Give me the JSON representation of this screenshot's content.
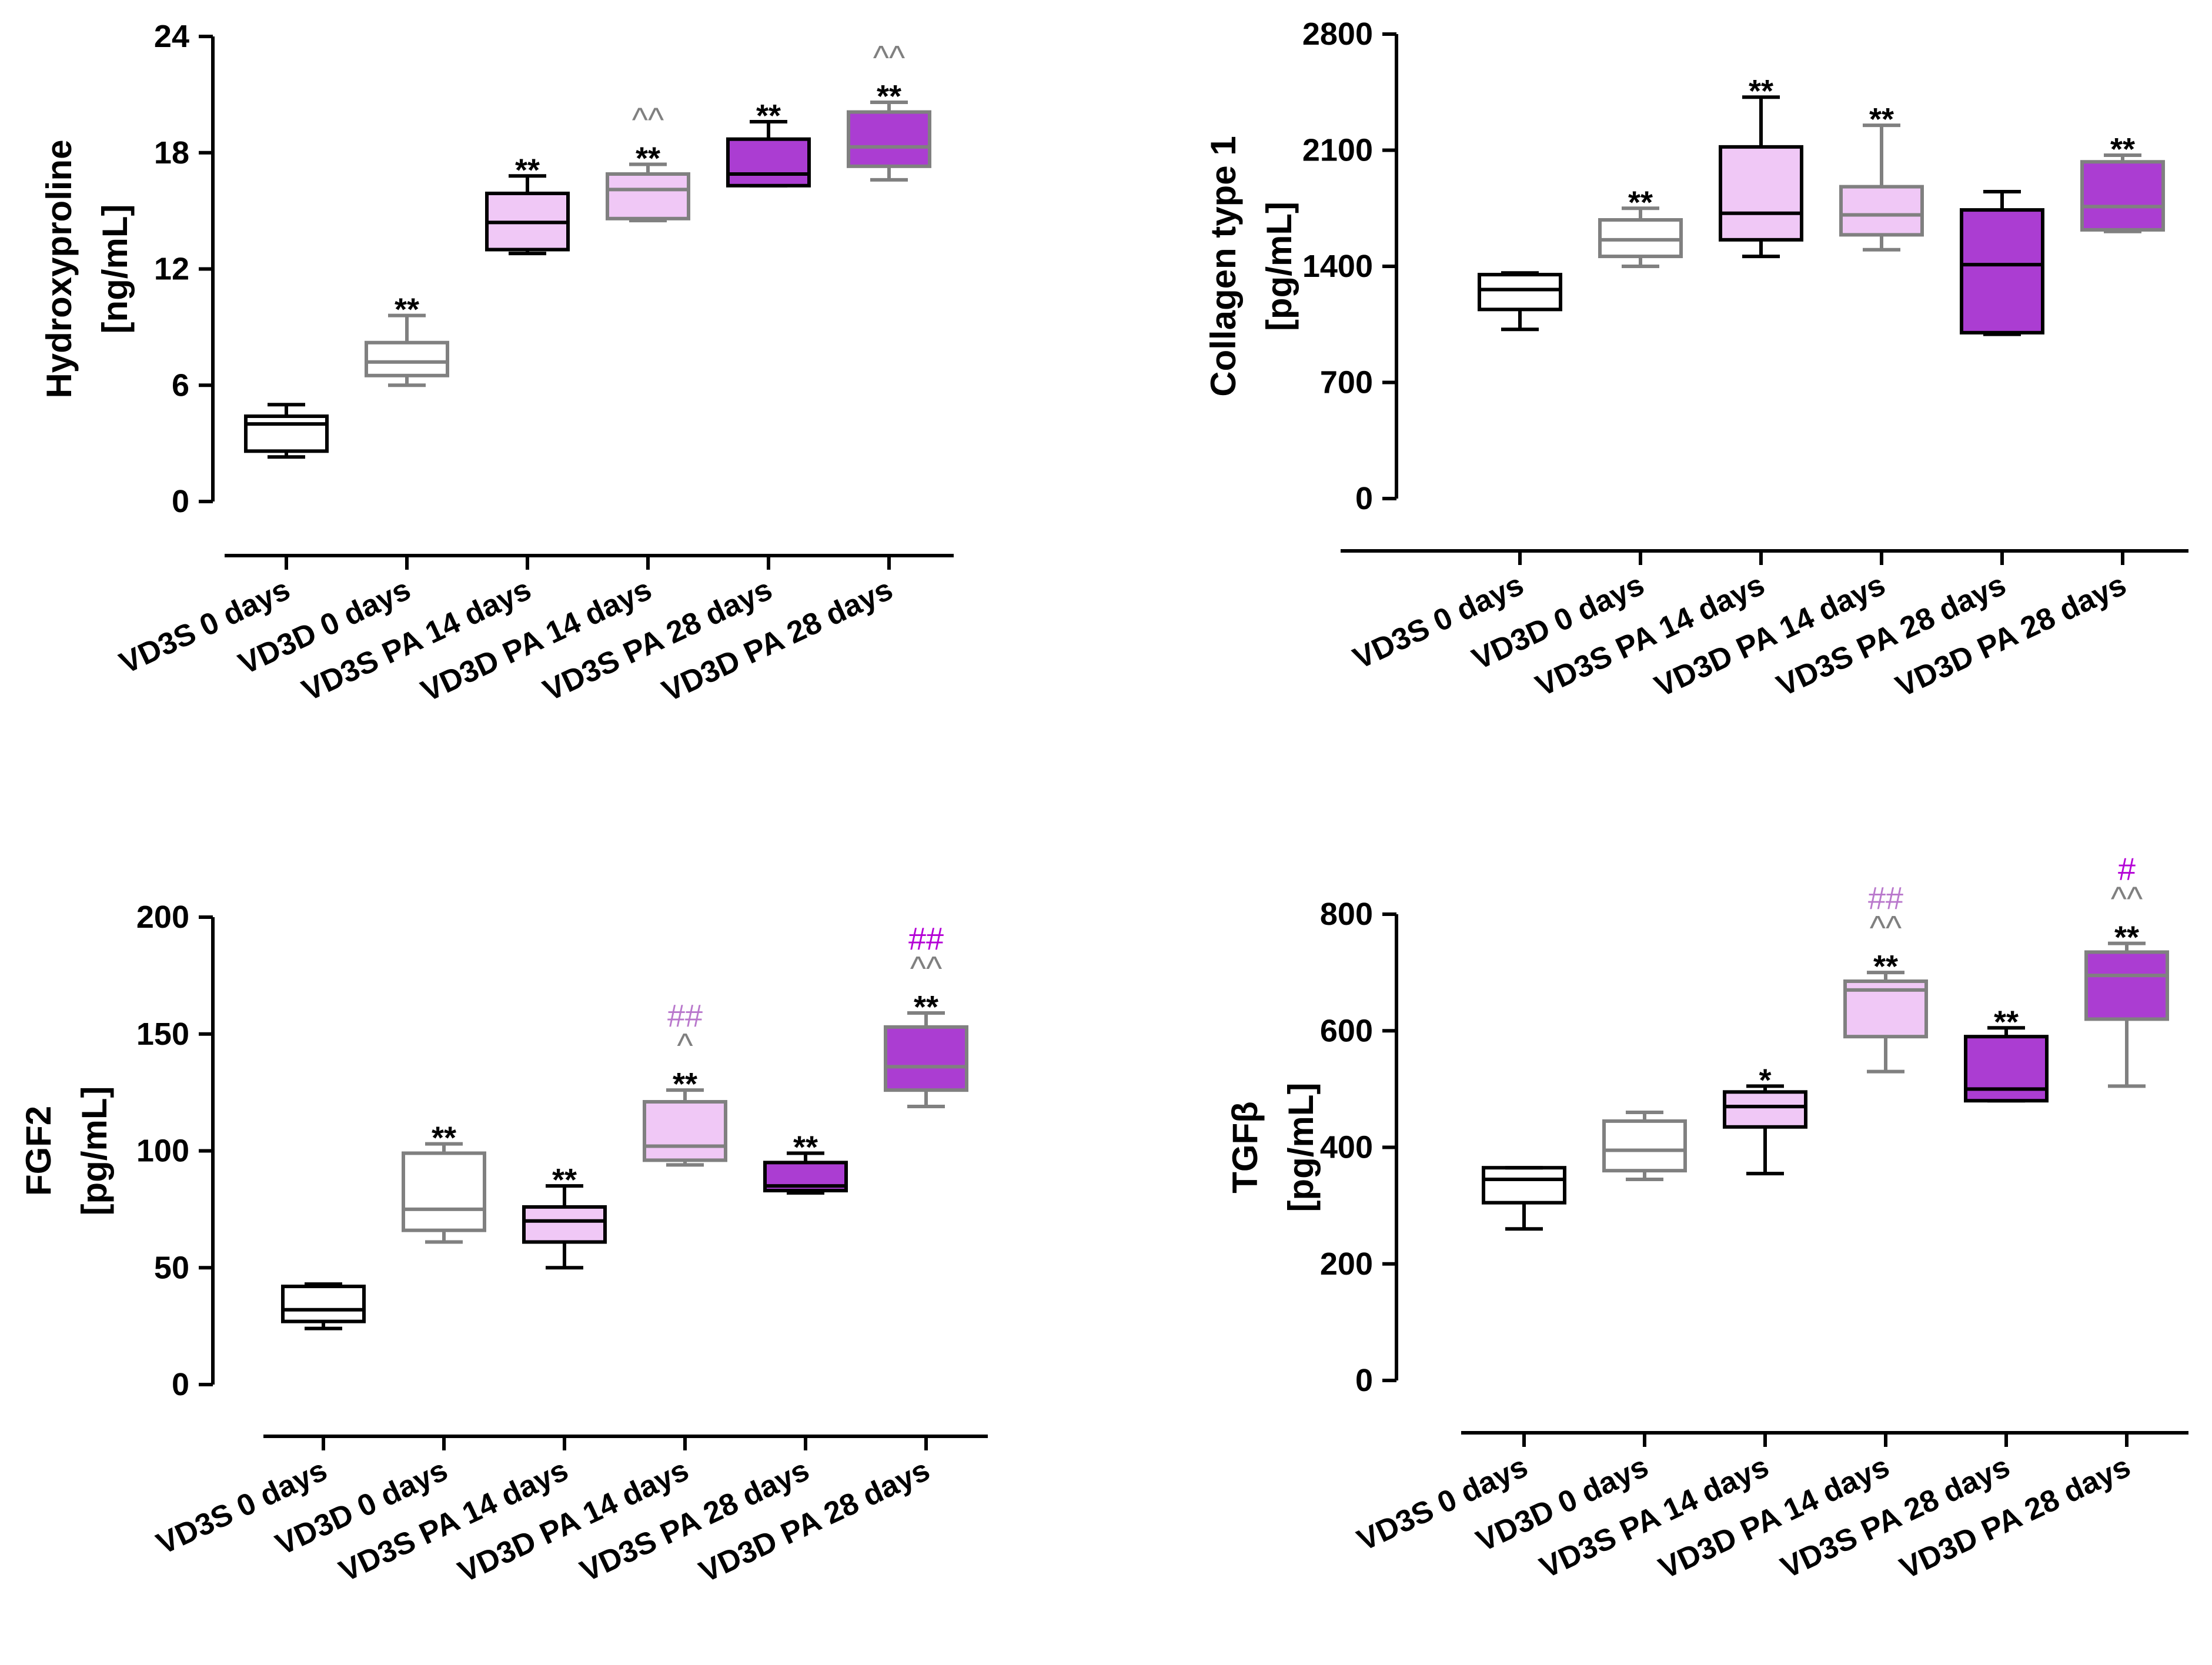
{
  "figure": {
    "colors": {
      "black": "#000000",
      "gray": "#808080",
      "light_fill": "#f0c8f6",
      "dark_fill": "#ab3dd2",
      "hash_light": "#b978cc",
      "hash_dark": "#b400d6"
    }
  },
  "chart_data": [
    {
      "type": "box",
      "title": "",
      "ylabel": "Hydroxyproline",
      "yunit": "[ng/mL]",
      "ylim": [
        0,
        24
      ],
      "yticks": [
        "0",
        "6",
        "12",
        "18",
        "24"
      ],
      "categories": [
        "VD3S 0 days",
        "VD3D 0 days",
        "VD3S PA 14 days",
        "VD3D PA 14 days",
        "VD3S PA 28 days",
        "VD3D PA 28 days"
      ],
      "boxes": [
        {
          "min": 2.3,
          "q1": 2.6,
          "median": 4.0,
          "q3": 4.4,
          "max": 5.0
        },
        {
          "min": 6.0,
          "q1": 6.5,
          "median": 7.2,
          "q3": 8.2,
          "max": 9.6
        },
        {
          "min": 12.8,
          "q1": 13.0,
          "median": 14.4,
          "q3": 15.9,
          "max": 16.8
        },
        {
          "min": 14.5,
          "q1": 14.6,
          "median": 16.1,
          "q3": 16.9,
          "max": 17.4
        },
        {
          "min": 16.3,
          "q1": 16.3,
          "median": 16.9,
          "q3": 18.7,
          "max": 19.6
        },
        {
          "min": 16.6,
          "q1": 17.3,
          "median": 18.3,
          "q3": 20.1,
          "max": 20.6
        }
      ],
      "annotations": [
        [],
        [
          {
            "text": "**",
            "style": "black"
          }
        ],
        [
          {
            "text": "**",
            "style": "black"
          }
        ],
        [
          {
            "text": "**",
            "style": "black"
          },
          {
            "text": "^^",
            "style": "gray"
          }
        ],
        [
          {
            "text": "**",
            "style": "black"
          }
        ],
        [
          {
            "text": "**",
            "style": "black"
          },
          {
            "text": "^^",
            "style": "gray"
          }
        ]
      ]
    },
    {
      "type": "box",
      "title": "",
      "ylabel": "Collagen type 1",
      "yunit": "[pg/mL]",
      "ylim": [
        0,
        2800
      ],
      "yticks": [
        "0",
        "700",
        "1400",
        "2100",
        "2800"
      ],
      "categories": [
        "VD3S 0 days",
        "VD3D 0 days",
        "VD3S PA 14 days",
        "VD3D PA 14 days",
        "VD3S PA 28 days",
        "VD3D PA 28 days"
      ],
      "boxes": [
        {
          "min": 1020,
          "q1": 1140,
          "median": 1260,
          "q3": 1350,
          "max": 1360
        },
        {
          "min": 1400,
          "q1": 1460,
          "median": 1560,
          "q3": 1680,
          "max": 1750
        },
        {
          "min": 1460,
          "q1": 1560,
          "median": 1720,
          "q3": 2120,
          "max": 2420
        },
        {
          "min": 1500,
          "q1": 1590,
          "median": 1710,
          "q3": 1880,
          "max": 2250
        },
        {
          "min": 990,
          "q1": 1000,
          "median": 1410,
          "q3": 1740,
          "max": 1850
        },
        {
          "min": 1610,
          "q1": 1620,
          "median": 1760,
          "q3": 2030,
          "max": 2070
        }
      ],
      "annotations": [
        [],
        [
          {
            "text": "**",
            "style": "black"
          }
        ],
        [
          {
            "text": "**",
            "style": "black"
          }
        ],
        [
          {
            "text": "**",
            "style": "black"
          }
        ],
        [],
        [
          {
            "text": "**",
            "style": "black"
          }
        ]
      ]
    },
    {
      "type": "box",
      "title": "",
      "ylabel": "FGF2",
      "yunit": "[pg/mL]",
      "ylim": [
        0,
        200
      ],
      "yticks": [
        "0",
        "50",
        "100",
        "150",
        "200"
      ],
      "categories": [
        "VD3S 0 days",
        "VD3D 0 days",
        "VD3S PA 14 days",
        "VD3D PA 14 days",
        "VD3S PA 28 days",
        "VD3D PA 28 days"
      ],
      "boxes": [
        {
          "min": 24,
          "q1": 27,
          "median": 32,
          "q3": 42,
          "max": 43
        },
        {
          "min": 61,
          "q1": 66,
          "median": 75,
          "q3": 99,
          "max": 103
        },
        {
          "min": 50,
          "q1": 61,
          "median": 70,
          "q3": 76,
          "max": 85
        },
        {
          "min": 94,
          "q1": 96,
          "median": 102,
          "q3": 121,
          "max": 126
        },
        {
          "min": 82,
          "q1": 83,
          "median": 85,
          "q3": 95,
          "max": 99
        },
        {
          "min": 119,
          "q1": 126,
          "median": 136,
          "q3": 153,
          "max": 159
        }
      ],
      "annotations": [
        [],
        [
          {
            "text": "**",
            "style": "black"
          }
        ],
        [
          {
            "text": "**",
            "style": "black"
          }
        ],
        [
          {
            "text": "**",
            "style": "black"
          },
          {
            "text": "^",
            "style": "gray"
          },
          {
            "text": "##",
            "style": "hash_light"
          }
        ],
        [
          {
            "text": "**",
            "style": "black"
          }
        ],
        [
          {
            "text": "**",
            "style": "black"
          },
          {
            "text": "^^",
            "style": "gray"
          },
          {
            "text": "##",
            "style": "hash_dark"
          }
        ]
      ]
    },
    {
      "type": "box",
      "title": "",
      "ylabel": "TGFβ",
      "yunit": "[pg/mL]",
      "ylim": [
        0,
        800
      ],
      "yticks": [
        "0",
        "200",
        "400",
        "600",
        "800"
      ],
      "categories": [
        "VD3S 0 days",
        "VD3D 0 days",
        "VD3S PA 14 days",
        "VD3D PA 14 days",
        "VD3S PA 28 days",
        "VD3D PA 28 days"
      ],
      "boxes": [
        {
          "min": 260,
          "q1": 305,
          "median": 345,
          "q3": 365,
          "max": 365
        },
        {
          "min": 345,
          "q1": 360,
          "median": 395,
          "q3": 445,
          "max": 460
        },
        {
          "min": 355,
          "q1": 435,
          "median": 470,
          "q3": 495,
          "max": 505
        },
        {
          "min": 530,
          "q1": 590,
          "median": 670,
          "q3": 685,
          "max": 700
        },
        {
          "min": 480,
          "q1": 480,
          "median": 500,
          "q3": 590,
          "max": 605
        },
        {
          "min": 505,
          "q1": 620,
          "median": 695,
          "q3": 735,
          "max": 750
        }
      ],
      "annotations": [
        [],
        [],
        [
          {
            "text": "*",
            "style": "black"
          }
        ],
        [
          {
            "text": "**",
            "style": "black"
          },
          {
            "text": "^^",
            "style": "gray"
          },
          {
            "text": "##",
            "style": "hash_light"
          }
        ],
        [
          {
            "text": "**",
            "style": "black"
          }
        ],
        [
          {
            "text": "**",
            "style": "black"
          },
          {
            "text": "^^",
            "style": "gray"
          },
          {
            "text": "#",
            "style": "hash_dark"
          }
        ]
      ]
    }
  ]
}
